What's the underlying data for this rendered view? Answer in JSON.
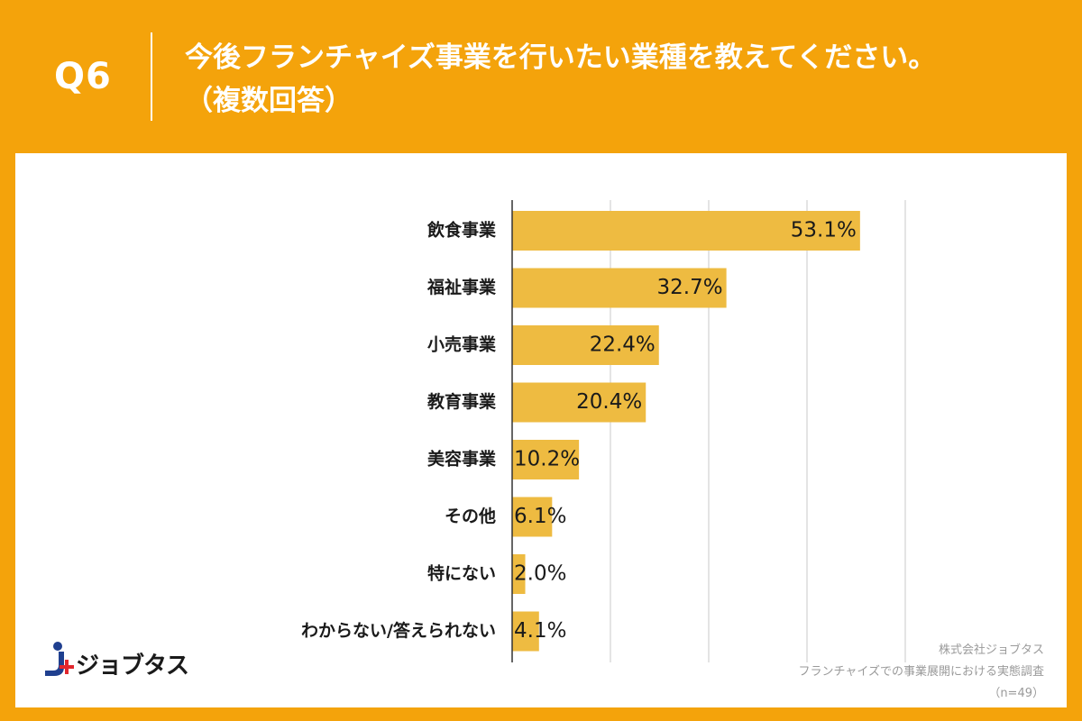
{
  "header": {
    "qnum": "Q6",
    "title_line1": "今後フランチャイズ事業を行いたい業種を教えてください。",
    "title_line2": "（複数回答）"
  },
  "colors": {
    "background": "#F4A30B",
    "bar": "#EEBB41",
    "grid": "#C8C8C8",
    "axis": "#333333",
    "text": "#1a1a1a",
    "source_text": "#9a9a9a",
    "logo_blue": "#1F3F8F",
    "logo_red": "#E1262D"
  },
  "chart_data": {
    "type": "bar",
    "orientation": "horizontal",
    "categories": [
      "飲食事業",
      "福祉事業",
      "小売事業",
      "教育事業",
      "美容事業",
      "その他",
      "特にない",
      "わからない/答えられない"
    ],
    "values": [
      53.1,
      32.7,
      22.4,
      20.4,
      10.2,
      6.1,
      2.0,
      4.1
    ],
    "data_labels": [
      "53.1%",
      "32.7%",
      "22.4%",
      "20.4%",
      "10.2%",
      "6.1%",
      "2.0%",
      "4.1%"
    ],
    "xlim": [
      0,
      60
    ],
    "grid": true,
    "x_gridlines": [
      15,
      30,
      45,
      60
    ],
    "tick_labels_visible": false
  },
  "logo": {
    "text": "ジョブタス",
    "icon": "jobtas-logo-icon"
  },
  "source": {
    "company": "株式会社ジョブタス",
    "survey": "フランチャイズでの事業展開における実態調査",
    "n": "（n=49）"
  }
}
